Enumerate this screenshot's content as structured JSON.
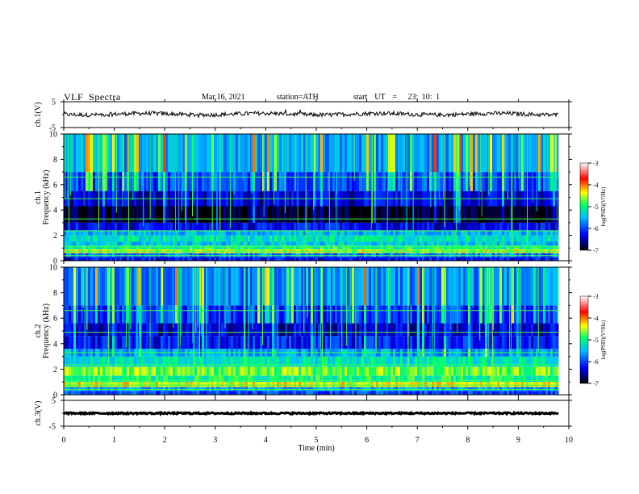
{
  "header": {
    "title": "VLF  Spectra",
    "date": "Mar.16, 2021",
    "station": "station=ATH",
    "start_ut": "start  UT  =   23: 10: 1"
  },
  "chart_data": [
    {
      "type": "line",
      "panel": "ch1-waveform",
      "ylabel": "ch.1(V)",
      "yticks": [
        "5",
        "-5"
      ],
      "ylim": [
        -5,
        5
      ],
      "x_unit": "min",
      "xlim": [
        0,
        10
      ],
      "series_level": 0.2,
      "color": "#000000"
    },
    {
      "type": "heatmap",
      "panel": "ch1-spectrogram",
      "ylabel": "ch.1\nFrequency (kHz)",
      "yticks": [
        "0",
        "2",
        "4",
        "6",
        "8",
        "10"
      ],
      "ylim": [
        0,
        10
      ],
      "xlim": [
        0,
        9.8
      ],
      "colorbar": {
        "label": "log(PSD)(V²/Hz)",
        "ticks": [
          "-3",
          "-4",
          "-5",
          "-6",
          "-7"
        ],
        "range": [
          -7,
          -3
        ]
      },
      "bands": [
        {
          "f0": 0.0,
          "f1": 0.3,
          "level": -6.3
        },
        {
          "f0": 0.3,
          "f1": 0.6,
          "level": -5.8
        },
        {
          "f0": 0.6,
          "f1": 0.9,
          "level": -4.5
        },
        {
          "f0": 0.9,
          "f1": 1.2,
          "level": -5.0
        },
        {
          "f0": 1.2,
          "f1": 1.5,
          "level": -5.4
        },
        {
          "f0": 1.5,
          "f1": 2.0,
          "level": -5.2
        },
        {
          "f0": 2.0,
          "f1": 2.4,
          "level": -5.5
        },
        {
          "f0": 2.4,
          "f1": 3.0,
          "level": -6.3
        },
        {
          "f0": 3.0,
          "f1": 4.3,
          "level": -6.9
        },
        {
          "f0": 4.3,
          "f1": 5.5,
          "level": -6.4
        },
        {
          "f0": 5.5,
          "f1": 7.0,
          "level": -6.0
        },
        {
          "f0": 7.0,
          "f1": 10.0,
          "level": -5.6
        }
      ]
    },
    {
      "type": "heatmap",
      "panel": "ch2-spectrogram",
      "ylabel": "ch.2\nFrequency (kHz)",
      "yticks": [
        "0",
        "2",
        "4",
        "6",
        "8",
        "10"
      ],
      "ylim": [
        0,
        10
      ],
      "xlim": [
        0,
        9.8
      ],
      "colorbar": {
        "label": "log(PSD)(V²/Hz)",
        "ticks": [
          "-3",
          "-4",
          "-5",
          "-6",
          "-7"
        ],
        "range": [
          -7,
          -3
        ]
      },
      "bands": [
        {
          "f0": 0.0,
          "f1": 0.3,
          "level": -6.0
        },
        {
          "f0": 0.3,
          "f1": 0.6,
          "level": -5.6
        },
        {
          "f0": 0.6,
          "f1": 1.0,
          "level": -4.4
        },
        {
          "f0": 1.0,
          "f1": 1.5,
          "level": -5.0
        },
        {
          "f0": 1.5,
          "f1": 2.2,
          "level": -4.7
        },
        {
          "f0": 2.2,
          "f1": 3.0,
          "level": -5.2
        },
        {
          "f0": 3.0,
          "f1": 3.6,
          "level": -5.6
        },
        {
          "f0": 3.6,
          "f1": 4.6,
          "level": -6.2
        },
        {
          "f0": 4.6,
          "f1": 5.6,
          "level": -6.4
        },
        {
          "f0": 5.6,
          "f1": 7.0,
          "level": -6.1
        },
        {
          "f0": 7.0,
          "f1": 10.0,
          "level": -5.7
        }
      ]
    },
    {
      "type": "line",
      "panel": "ch3-waveform",
      "ylabel": "ch.3(V)",
      "yticks": [
        "5",
        "-5"
      ],
      "ylim": [
        -5,
        5
      ],
      "xlim": [
        0,
        10
      ],
      "xlabel": "Time  (min)",
      "xticks": [
        "0",
        "1",
        "2",
        "3",
        "4",
        "5",
        "6",
        "7",
        "8",
        "9",
        "10"
      ],
      "series_level": 0.0,
      "color": "#000000"
    }
  ],
  "colors": {
    "colormap": [
      "#000000",
      "#0000ff",
      "#00c0ff",
      "#00ff66",
      "#ffff00",
      "#ff0000",
      "#ffffff"
    ]
  }
}
